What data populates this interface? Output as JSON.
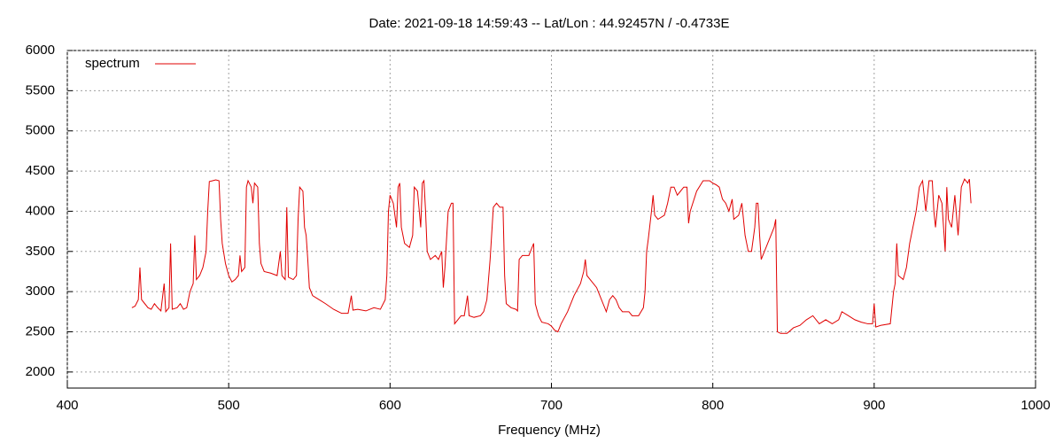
{
  "chart_data": {
    "type": "line",
    "title": "Date: 2021-09-18 14:59:43  --  Lat/Lon : 44.92457N / -0.4733E",
    "x_label": "Frequency (MHz)",
    "x": [
      440,
      442,
      444,
      445,
      446,
      448,
      450,
      452,
      454,
      456,
      458,
      460,
      461,
      463,
      464,
      465,
      468,
      470,
      472,
      474,
      476,
      478,
      479,
      480,
      482,
      484,
      486,
      487,
      488,
      490,
      492,
      494,
      495,
      496,
      498,
      500,
      502,
      504,
      506,
      507,
      508,
      510,
      511,
      512,
      514,
      515,
      516,
      518,
      519,
      520,
      522,
      526,
      530,
      532,
      533,
      535,
      536,
      537,
      540,
      542,
      543,
      544,
      546,
      547,
      548,
      549,
      550,
      552,
      556,
      560,
      565,
      570,
      574,
      576,
      577,
      580,
      585,
      590,
      594,
      597,
      598,
      599,
      600,
      602,
      604,
      605,
      606,
      607,
      609,
      612,
      614,
      615,
      617,
      619,
      620,
      621,
      622,
      623,
      625,
      628,
      630,
      632,
      633,
      634,
      636,
      638,
      639,
      640,
      642,
      644,
      646,
      648,
      649,
      652,
      656,
      658,
      660,
      662,
      664,
      666,
      668,
      670,
      671,
      672,
      675,
      678,
      679,
      680,
      682,
      686,
      688,
      689,
      690,
      692,
      694,
      698,
      700,
      702,
      704,
      706,
      710,
      714,
      718,
      720,
      721,
      722,
      724,
      728,
      730,
      732,
      734,
      736,
      738,
      740,
      742,
      744,
      748,
      750,
      754,
      757,
      758,
      759,
      760,
      762,
      763,
      764,
      766,
      770,
      772,
      774,
      776,
      778,
      780,
      782,
      784,
      785,
      786,
      790,
      794,
      798,
      800,
      802,
      804,
      806,
      808,
      810,
      812,
      813,
      816,
      818,
      820,
      822,
      824,
      826,
      827,
      828,
      829,
      830,
      832,
      834,
      836,
      838,
      839,
      840,
      842,
      846,
      850,
      854,
      858,
      862,
      866,
      870,
      874,
      878,
      880,
      884,
      888,
      892,
      896,
      899,
      900,
      901,
      904,
      910,
      912,
      913,
      914,
      915,
      918,
      920,
      922,
      924,
      926,
      928,
      930,
      932,
      934,
      936,
      937,
      938,
      940,
      942,
      944,
      945,
      946,
      948,
      950,
      952,
      954,
      956,
      958,
      959,
      960
    ],
    "series": [
      {
        "name": "spectrum",
        "color": "#e00000",
        "values": [
          2800,
          2820,
          2900,
          3300,
          2900,
          2850,
          2800,
          2780,
          2850,
          2800,
          2760,
          3100,
          2750,
          2800,
          3600,
          2780,
          2800,
          2850,
          2780,
          2800,
          3000,
          3100,
          3700,
          3150,
          3200,
          3300,
          3500,
          4000,
          4370,
          4380,
          4390,
          4380,
          3900,
          3600,
          3350,
          3200,
          3120,
          3150,
          3200,
          3450,
          3250,
          3300,
          4300,
          4380,
          4300,
          4100,
          4350,
          4300,
          3600,
          3350,
          3250,
          3230,
          3200,
          3500,
          3200,
          3150,
          4050,
          3180,
          3150,
          3200,
          3900,
          4300,
          4250,
          3800,
          3700,
          3400,
          3050,
          2950,
          2900,
          2850,
          2780,
          2730,
          2730,
          2950,
          2770,
          2780,
          2760,
          2800,
          2780,
          2900,
          3200,
          4000,
          4200,
          4100,
          3800,
          4300,
          4350,
          3800,
          3600,
          3550,
          3700,
          4300,
          4250,
          3800,
          4350,
          4380,
          4000,
          3500,
          3400,
          3450,
          3400,
          3500,
          3050,
          3300,
          4000,
          4100,
          4100,
          2600,
          2650,
          2700,
          2700,
          2950,
          2700,
          2680,
          2700,
          2750,
          2900,
          3400,
          4050,
          4100,
          4050,
          4050,
          3200,
          2850,
          2800,
          2780,
          2760,
          3400,
          3450,
          3450,
          3550,
          3600,
          2850,
          2700,
          2620,
          2600,
          2570,
          2520,
          2500,
          2600,
          2750,
          2950,
          3100,
          3250,
          3400,
          3200,
          3150,
          3050,
          2950,
          2850,
          2750,
          2900,
          2950,
          2900,
          2800,
          2750,
          2750,
          2700,
          2700,
          2800,
          3000,
          3500,
          3650,
          4000,
          4200,
          3950,
          3900,
          3950,
          4100,
          4300,
          4300,
          4200,
          4250,
          4300,
          4300,
          3850,
          4000,
          4250,
          4380,
          4380,
          4350,
          4330,
          4300,
          4150,
          4100,
          4000,
          4150,
          3900,
          3950,
          4100,
          3700,
          3500,
          3500,
          3800,
          4100,
          4100,
          3700,
          3400,
          3500,
          3600,
          3700,
          3800,
          3900,
          2500,
          2480,
          2480,
          2550,
          2580,
          2650,
          2700,
          2600,
          2650,
          2600,
          2650,
          2750,
          2700,
          2650,
          2620,
          2600,
          2600,
          2850,
          2560,
          2580,
          2600,
          3000,
          3100,
          3600,
          3200,
          3150,
          3300,
          3600,
          3800,
          4000,
          4300,
          4380,
          4000,
          4380,
          4380,
          4000,
          3800,
          4200,
          4100,
          3500,
          4300,
          3900,
          3800,
          4200,
          3700,
          4300,
          4400,
          4350,
          4400,
          4100
        ]
      }
    ],
    "xlim": [
      400,
      1000
    ],
    "xticks": [
      400,
      500,
      600,
      700,
      800,
      900,
      1000
    ],
    "ylim": [
      1800,
      6000
    ],
    "yticks": [
      2000,
      2500,
      3000,
      3500,
      4000,
      4500,
      5000,
      5500,
      6000
    ],
    "grid": true,
    "legend": "top-left"
  }
}
